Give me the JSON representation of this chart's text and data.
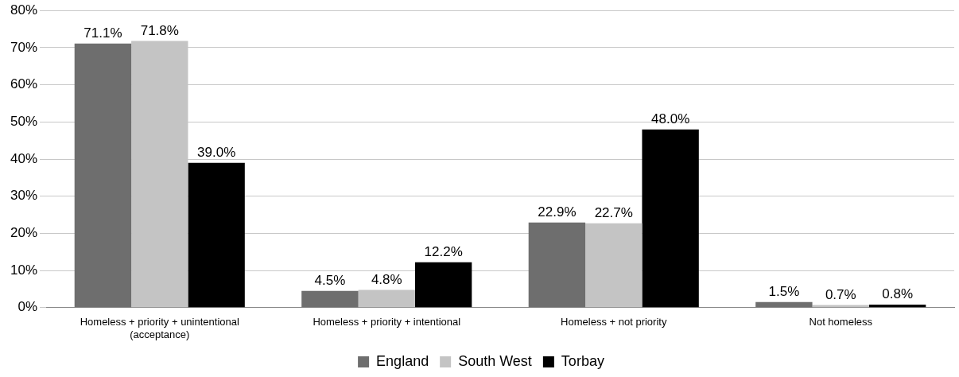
{
  "chart_data": {
    "type": "bar",
    "categories": [
      "Homeless + priority + unintentional (acceptance)",
      "Homeless + priority + intentional",
      "Homeless + not priority",
      "Not homeless"
    ],
    "series": [
      {
        "name": "England",
        "color": "#6e6e6e",
        "values": [
          71.1,
          4.5,
          22.9,
          1.5
        ],
        "value_labels": [
          "71.1%",
          "4.5%",
          "22.9%",
          "1.5%"
        ]
      },
      {
        "name": "South West",
        "color": "#c4c4c4",
        "values": [
          71.8,
          4.8,
          22.7,
          0.7
        ],
        "value_labels": [
          "71.8%",
          "4.8%",
          "22.7%",
          "0.7%"
        ]
      },
      {
        "name": "Torbay",
        "color": "#000000",
        "values": [
          39.0,
          12.2,
          48.0,
          0.8
        ],
        "value_labels": [
          "39.0%",
          "12.2%",
          "48.0%",
          "0.8%"
        ]
      }
    ],
    "ylim": [
      0,
      80
    ],
    "yticks": [
      {
        "value": 0,
        "label": "0%"
      },
      {
        "value": 10,
        "label": "10%"
      },
      {
        "value": 20,
        "label": "20%"
      },
      {
        "value": 30,
        "label": "30%"
      },
      {
        "value": 40,
        "label": "40%"
      },
      {
        "value": 50,
        "label": "50%"
      },
      {
        "value": 60,
        "label": "60%"
      },
      {
        "value": 70,
        "label": "70%"
      },
      {
        "value": 80,
        "label": "80%"
      }
    ],
    "grid": "y",
    "legend": "bottom"
  }
}
